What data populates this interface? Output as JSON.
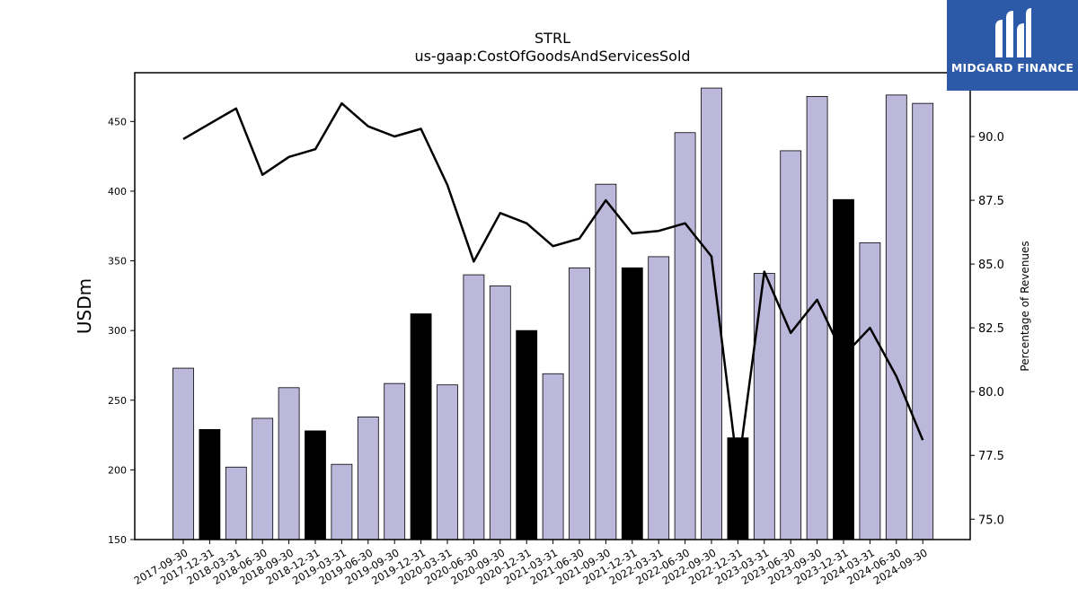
{
  "chart_data": {
    "type": "bar",
    "title": "STRL",
    "subtitle": "us-gaap:CostOfGoodsAndServicesSold",
    "ylabel": "USDm",
    "y2label": "Percentage of Revenues",
    "ylim": [
      150,
      485
    ],
    "y2lim": [
      74.2,
      92.5
    ],
    "yticks": [
      150,
      200,
      250,
      300,
      350,
      400,
      450
    ],
    "y2ticks": [
      75.0,
      77.5,
      80.0,
      82.5,
      85.0,
      87.5,
      90.0
    ],
    "categories": [
      "2017-09-30",
      "2017-12-31",
      "2018-03-31",
      "2018-06-30",
      "2018-09-30",
      "2018-12-31",
      "2019-03-31",
      "2019-06-30",
      "2019-09-30",
      "2019-12-31",
      "2020-03-31",
      "2020-06-30",
      "2020-09-30",
      "2020-12-31",
      "2021-03-31",
      "2021-06-30",
      "2021-09-30",
      "2021-12-31",
      "2022-03-31",
      "2022-06-30",
      "2022-09-30",
      "2022-12-31",
      "2023-03-31",
      "2023-06-30",
      "2023-09-30",
      "2023-12-31",
      "2024-03-31",
      "2024-06-30",
      "2024-09-30"
    ],
    "series": [
      {
        "type": "bar",
        "values": [
          273,
          229,
          202,
          237,
          259,
          228,
          204,
          238,
          262,
          312,
          261,
          340,
          332,
          300,
          269,
          345,
          405,
          345,
          353,
          442,
          474,
          223,
          341,
          429,
          468,
          394,
          363,
          469,
          463
        ],
        "highlight": [
          false,
          true,
          false,
          false,
          false,
          true,
          false,
          false,
          false,
          true,
          false,
          false,
          false,
          true,
          false,
          false,
          false,
          true,
          false,
          false,
          false,
          true,
          false,
          false,
          false,
          true,
          false,
          false,
          false
        ]
      },
      {
        "type": "line",
        "axis": "right",
        "values": [
          89.9,
          90.5,
          91.1,
          88.5,
          89.2,
          89.5,
          91.3,
          90.4,
          90.0,
          90.3,
          88.1,
          85.1,
          87.0,
          86.6,
          85.7,
          86.0,
          87.5,
          86.2,
          86.3,
          86.6,
          85.3,
          76.9,
          84.7,
          82.3,
          83.6,
          81.4,
          82.5,
          80.6,
          78.1
        ]
      }
    ],
    "colors": {
      "bar": "#bcb8db",
      "bar_highlight": "#000000",
      "line": "#000000"
    },
    "grid": false,
    "legend": "none"
  },
  "logo": {
    "text": "MIDGARD FINANCE"
  }
}
